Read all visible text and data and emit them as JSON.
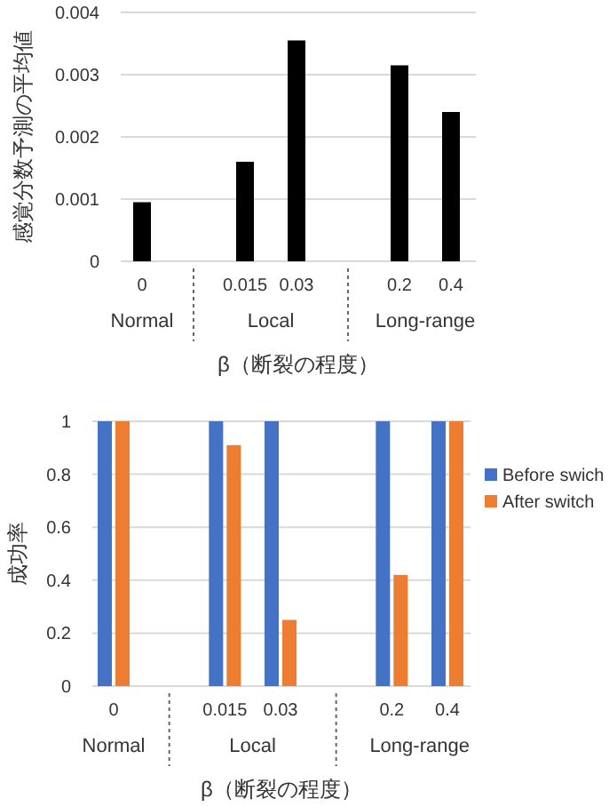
{
  "chart_data": [
    {
      "type": "bar",
      "xlabel": "β（断裂の程度）",
      "ylabel": "感覚分数予測の平均値",
      "categories": [
        "0",
        null,
        "0.015",
        "0.03",
        null,
        "0.2",
        "0.4"
      ],
      "series": [
        {
          "color": "#000000",
          "values": [
            0.00095,
            null,
            0.0016,
            0.00355,
            null,
            0.00315,
            0.0024
          ]
        }
      ],
      "ylim": [
        0,
        0.004
      ],
      "yticks": [
        0,
        0.001,
        0.002,
        0.003,
        0.004
      ],
      "grid": "y",
      "annotations": [
        "Normal",
        "Local",
        "Long-range"
      ]
    },
    {
      "type": "bar",
      "xlabel": "β（断裂の程度）",
      "ylabel": "成功率",
      "categories": [
        "0",
        null,
        "0.015",
        "0.03",
        null,
        "0.2",
        "0.4"
      ],
      "series": [
        {
          "name": "Before swich",
          "color": "#4472c4",
          "values": [
            1,
            null,
            1,
            1,
            null,
            1,
            1
          ]
        },
        {
          "name": "After switch",
          "color": "#ed7d31",
          "values": [
            1,
            null,
            0.91,
            0.25,
            null,
            0.42,
            1
          ]
        }
      ],
      "ylim": [
        0,
        1
      ],
      "yticks": [
        0,
        0.2,
        0.4,
        0.6,
        0.8,
        1
      ],
      "grid": "y",
      "legend": "right",
      "annotations": [
        "Normal",
        "Local",
        "Long-range"
      ]
    }
  ]
}
